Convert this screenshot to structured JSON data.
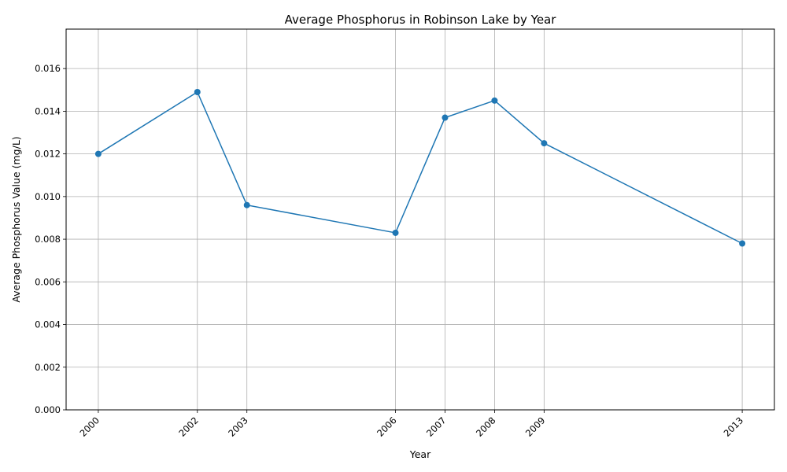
{
  "chart_data": {
    "type": "line",
    "title": "Average Phosphorus in Robinson Lake by Year",
    "xlabel": "Year",
    "ylabel": "Average Phosphorus Value (mg/L)",
    "x": [
      2000,
      2002,
      2003,
      2006,
      2007,
      2008,
      2009,
      2013
    ],
    "x_tick_labels": [
      "2000",
      "2002",
      "2003",
      "2006",
      "2007",
      "2008",
      "2009",
      "2013"
    ],
    "series": [
      {
        "values": [
          0.012,
          0.0149,
          0.0096,
          0.0083,
          0.0137,
          0.0145,
          0.0125,
          0.0078
        ]
      }
    ],
    "y_ticks": [
      0.0,
      0.002,
      0.004,
      0.006,
      0.008,
      0.01,
      0.012,
      0.014,
      0.016
    ],
    "y_tick_labels": [
      "0.000",
      "0.002",
      "0.004",
      "0.006",
      "0.008",
      "0.010",
      "0.012",
      "0.014",
      "0.016"
    ],
    "xlim": [
      1999.35,
      2013.65
    ],
    "ylim": [
      0,
      0.01785
    ],
    "grid": true,
    "markers": true,
    "line_color": "#1f77b4"
  }
}
